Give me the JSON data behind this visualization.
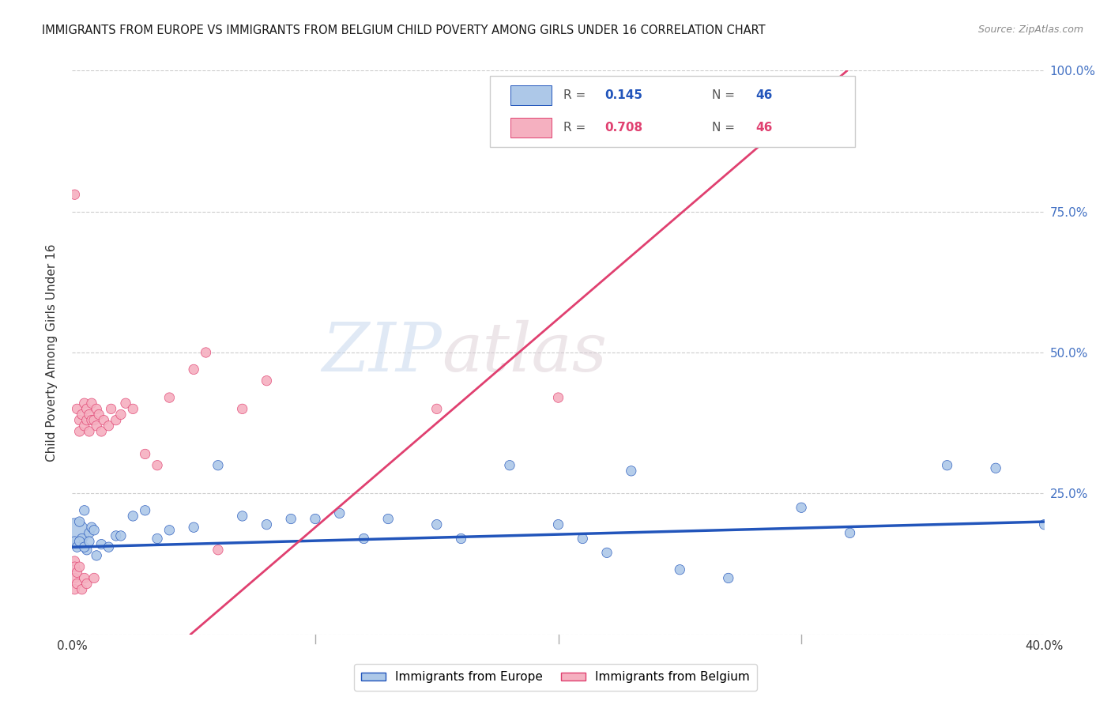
{
  "title": "IMMIGRANTS FROM EUROPE VS IMMIGRANTS FROM BELGIUM CHILD POVERTY AMONG GIRLS UNDER 16 CORRELATION CHART",
  "source": "Source: ZipAtlas.com",
  "ylabel": "Child Poverty Among Girls Under 16",
  "legend_europe": "Immigrants from Europe",
  "legend_belgium": "Immigrants from Belgium",
  "r_europe": "0.145",
  "r_belgium": "0.708",
  "n_europe": "46",
  "n_belgium": "46",
  "xlim": [
    0.0,
    0.4
  ],
  "ylim": [
    0.0,
    1.0
  ],
  "color_europe": "#adc8e8",
  "color_belgium": "#f5b0c0",
  "line_color_europe": "#2255bb",
  "line_color_belgium": "#e04070",
  "watermark_zip": "ZIP",
  "watermark_atlas": "atlas",
  "eu_trend": [
    0.0,
    0.4,
    0.155,
    0.2
  ],
  "bel_trend": [
    0.0,
    0.4,
    -0.18,
    1.3
  ],
  "europe_x": [
    0.001,
    0.002,
    0.003,
    0.004,
    0.005,
    0.006,
    0.007,
    0.008,
    0.01,
    0.012,
    0.015,
    0.018,
    0.02,
    0.025,
    0.03,
    0.035,
    0.04,
    0.05,
    0.06,
    0.07,
    0.08,
    0.09,
    0.1,
    0.11,
    0.12,
    0.13,
    0.15,
    0.16,
    0.18,
    0.2,
    0.21,
    0.22,
    0.23,
    0.25,
    0.27,
    0.3,
    0.32,
    0.36,
    0.38,
    0.4,
    0.001,
    0.002,
    0.003,
    0.005,
    0.007,
    0.009
  ],
  "europe_y": [
    0.18,
    0.16,
    0.2,
    0.17,
    0.22,
    0.15,
    0.18,
    0.19,
    0.14,
    0.16,
    0.155,
    0.175,
    0.175,
    0.21,
    0.22,
    0.17,
    0.185,
    0.19,
    0.3,
    0.21,
    0.195,
    0.205,
    0.205,
    0.215,
    0.17,
    0.205,
    0.195,
    0.17,
    0.3,
    0.195,
    0.17,
    0.145,
    0.29,
    0.115,
    0.1,
    0.225,
    0.18,
    0.3,
    0.295,
    0.195,
    0.165,
    0.155,
    0.165,
    0.155,
    0.165,
    0.185
  ],
  "europe_size": [
    700,
    80,
    80,
    80,
    80,
    80,
    80,
    80,
    80,
    80,
    80,
    80,
    80,
    80,
    80,
    80,
    80,
    80,
    80,
    80,
    80,
    80,
    80,
    80,
    80,
    80,
    80,
    80,
    80,
    80,
    80,
    80,
    80,
    80,
    80,
    80,
    80,
    80,
    80,
    80,
    80,
    80,
    80,
    80,
    80,
    80
  ],
  "belgium_x": [
    0.001,
    0.001,
    0.001,
    0.001,
    0.002,
    0.002,
    0.002,
    0.003,
    0.003,
    0.003,
    0.004,
    0.004,
    0.005,
    0.005,
    0.005,
    0.006,
    0.006,
    0.006,
    0.007,
    0.007,
    0.008,
    0.008,
    0.009,
    0.009,
    0.01,
    0.01,
    0.011,
    0.012,
    0.013,
    0.015,
    0.016,
    0.018,
    0.02,
    0.022,
    0.025,
    0.03,
    0.035,
    0.04,
    0.05,
    0.055,
    0.06,
    0.07,
    0.08,
    0.15,
    0.2,
    0.001
  ],
  "belgium_y": [
    0.1,
    0.13,
    0.08,
    0.12,
    0.09,
    0.11,
    0.4,
    0.38,
    0.12,
    0.36,
    0.39,
    0.08,
    0.41,
    0.1,
    0.37,
    0.38,
    0.09,
    0.4,
    0.36,
    0.39,
    0.38,
    0.41,
    0.38,
    0.1,
    0.4,
    0.37,
    0.39,
    0.36,
    0.38,
    0.37,
    0.4,
    0.38,
    0.39,
    0.41,
    0.4,
    0.32,
    0.3,
    0.42,
    0.47,
    0.5,
    0.15,
    0.4,
    0.45,
    0.4,
    0.42,
    0.78
  ],
  "belgium_size": [
    80,
    80,
    80,
    80,
    80,
    80,
    80,
    80,
    80,
    80,
    80,
    80,
    80,
    80,
    80,
    80,
    80,
    80,
    80,
    80,
    80,
    80,
    80,
    80,
    80,
    80,
    80,
    80,
    80,
    80,
    80,
    80,
    80,
    80,
    80,
    80,
    80,
    80,
    80,
    80,
    80,
    80,
    80,
    80,
    80,
    80
  ]
}
